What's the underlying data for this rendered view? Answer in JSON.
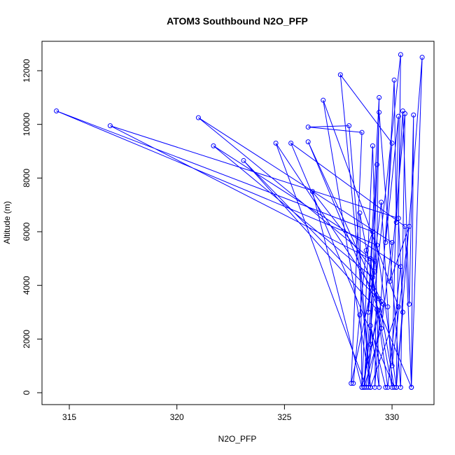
{
  "chart_data": {
    "type": "line",
    "title": "ATOM3 Southbound N2O_PFP",
    "x_label": "N2O_PFP",
    "y_label": "Altitude (m)",
    "x": [
      328.2,
      328.5,
      328.8,
      329.1,
      314.4,
      329.3,
      330.2,
      330.5,
      330.3,
      316.9,
      329.2,
      328.7,
      329.5,
      330.0,
      321.0,
      329.0,
      329.8,
      330.4,
      321.7,
      329.1,
      328.9,
      329.6,
      323.1,
      329.3,
      328.8,
      324.6,
      329.4,
      330.1,
      325.3,
      330.6,
      330.9,
      326.1,
      329.5,
      328.6,
      326.3,
      329.2,
      328.1,
      328.6,
      326.1,
      328.0,
      329.0,
      326.8,
      330.3,
      329.0,
      327.6,
      330.0,
      329.2,
      329.4,
      328.7,
      330.4,
      330.2,
      331.4,
      330.9,
      331.0,
      330.8,
      330.5,
      330.2,
      330.1,
      329.7,
      330.3,
      330.0,
      330.8,
      329.9,
      330.6,
      330.4,
      329.4,
      329.0,
      329.3,
      328.9,
      329.5,
      329.8,
      330.0,
      328.5,
      328.6,
      329.1,
      329.4,
      329.0,
      329.7
    ],
    "series": [
      {
        "name": "N2O_PFP",
        "color": "#0000ff",
        "values": [
          350,
          2900,
          5300,
          6000,
          10500,
          5500,
          200,
          3000,
          6500,
          9950,
          4900,
          200,
          2400,
          5600,
          10250,
          5000,
          200,
          4700,
          9200,
          4300,
          200,
          3300,
          8650,
          3100,
          200,
          9300,
          3500,
          200,
          9300,
          6200,
          200,
          9350,
          3400,
          200,
          7500,
          4500,
          350,
          9700,
          9900,
          9950,
          200,
          10900,
          3200,
          200,
          11850,
          9300,
          200,
          11000,
          200,
          12600,
          200,
          12500,
          200,
          10350,
          3300,
          10500,
          6350,
          11650,
          5600,
          10300,
          1000,
          6200,
          4150,
          10400,
          200,
          10450,
          1800,
          8500,
          3000,
          7100,
          3200,
          200,
          6700,
          200,
          9200,
          200,
          2500,
          200
        ]
      }
    ],
    "xlim": [
      313.73,
      331.95
    ],
    "ylim": [
      -443,
      13096
    ],
    "xticks": [
      315,
      320,
      325,
      330
    ],
    "yticks": [
      0,
      2000,
      4000,
      6000,
      8000,
      10000,
      12000
    ]
  }
}
